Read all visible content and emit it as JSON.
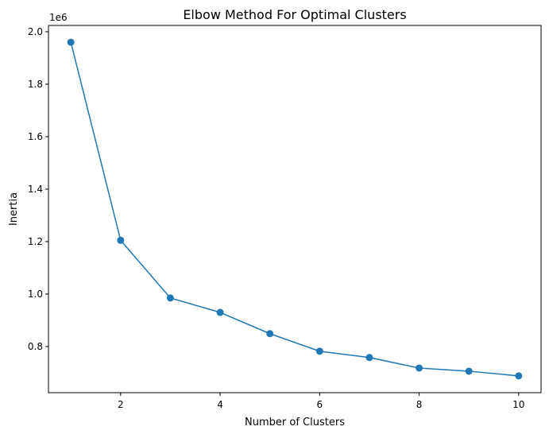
{
  "chart_data": {
    "type": "line",
    "title": "Elbow Method For Optimal Clusters",
    "xlabel": "Number of Clusters",
    "ylabel": "Inertia",
    "y_offset_label": "1e6",
    "x": [
      1,
      2,
      3,
      4,
      5,
      6,
      7,
      8,
      9,
      10
    ],
    "series": [
      {
        "values": [
          1960000,
          1205000,
          985000,
          930000,
          849000,
          782000,
          758000,
          718000,
          706000,
          688000
        ],
        "color": "#1f77b4",
        "marker": "circle"
      }
    ],
    "xlim": [
      0.55,
      10.45
    ],
    "ylim": [
      624000,
      2024000
    ],
    "x_ticks": [
      2,
      4,
      6,
      8,
      10
    ],
    "x_tick_labels": [
      "2",
      "4",
      "6",
      "8",
      "10"
    ],
    "y_ticks": [
      800000,
      1000000,
      1200000,
      1400000,
      1600000,
      1800000,
      2000000
    ],
    "y_tick_labels": [
      "0.8",
      "1.0",
      "1.2",
      "1.4",
      "1.6",
      "1.8",
      "2.0"
    ],
    "grid": false,
    "legend": "none"
  }
}
